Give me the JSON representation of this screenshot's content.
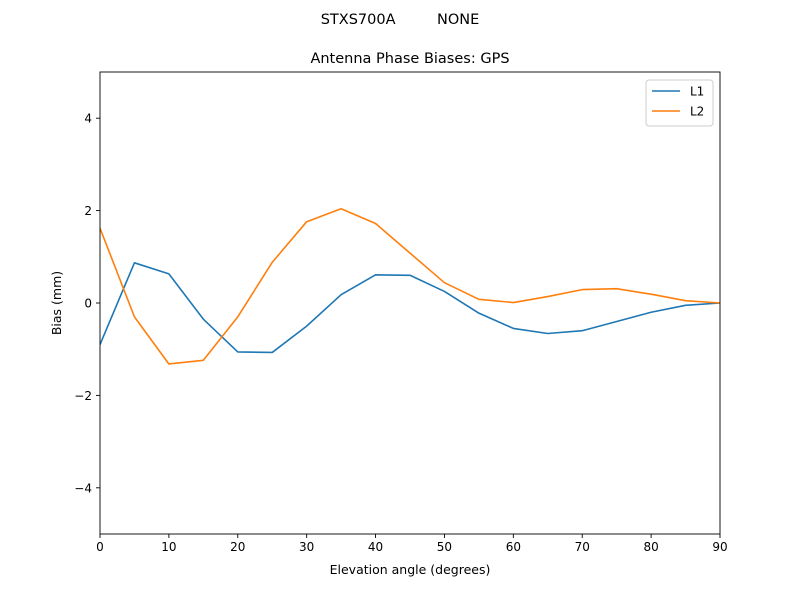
{
  "suptitle": "STXS700A         NONE",
  "chart_data": {
    "type": "line",
    "title": "Antenna Phase Biases: GPS",
    "xlabel": "Elevation angle (degrees)",
    "ylabel": "Bias (mm)",
    "xlim": [
      0,
      90
    ],
    "ylim": [
      -5,
      5
    ],
    "xticks": [
      0,
      10,
      20,
      30,
      40,
      50,
      60,
      70,
      80,
      90
    ],
    "yticks": [
      -4,
      -2,
      0,
      2,
      4
    ],
    "ytick_labels": [
      "−4",
      "−2",
      "0",
      "2",
      "4"
    ],
    "x": [
      0,
      5,
      10,
      15,
      20,
      25,
      30,
      35,
      40,
      45,
      50,
      55,
      60,
      65,
      70,
      75,
      80,
      85,
      90
    ],
    "series": [
      {
        "name": "L1",
        "color": "#1f77b4",
        "values": [
          -0.9,
          0.87,
          0.63,
          -0.35,
          -1.06,
          -1.07,
          -0.5,
          0.18,
          0.61,
          0.6,
          0.25,
          -0.22,
          -0.55,
          -0.66,
          -0.6,
          -0.4,
          -0.2,
          -0.05,
          0.0
        ]
      },
      {
        "name": "L2",
        "color": "#ff7f0e",
        "values": [
          1.62,
          -0.3,
          -1.32,
          -1.24,
          -0.3,
          0.88,
          1.76,
          2.04,
          1.72,
          1.08,
          0.44,
          0.08,
          0.01,
          0.14,
          0.29,
          0.31,
          0.19,
          0.05,
          0.0
        ]
      }
    ],
    "legend_position": "upper right",
    "grid": false
  }
}
